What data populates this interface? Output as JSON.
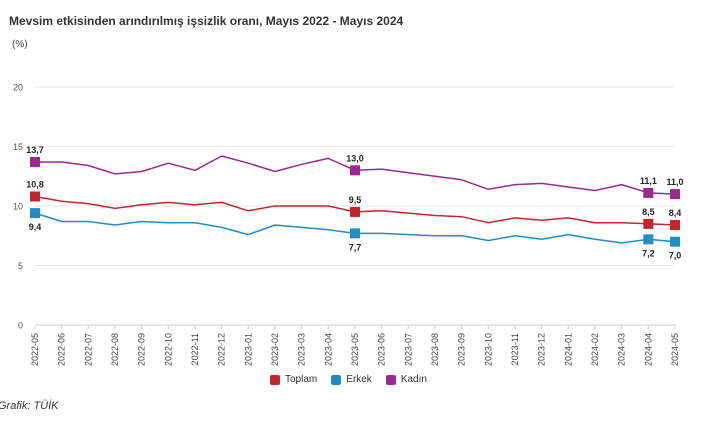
{
  "title": "Mevsim etkisinden arındırılmış işsizlik oranı, Mayıs 2022 - Mayıs 2024",
  "unit": "(%)",
  "source": "Grafik: TÜİK",
  "chart_data": {
    "type": "line",
    "title": "Mevsim etkisinden arındırılmış işsizlik oranı, Mayıs 2022 - Mayıs 2024",
    "ylabel": "(%)",
    "ylim": [
      0,
      20
    ],
    "yticks": [
      0,
      5,
      10,
      15,
      20
    ],
    "grid": "horizontal",
    "legend_position": "bottom-center",
    "categories": [
      "2022-05",
      "2022-06",
      "2022-07",
      "2022-08",
      "2022-09",
      "2022-10",
      "2022-11",
      "2022-12",
      "2023-01",
      "2023-02",
      "2023-03",
      "2023-04",
      "2023-05",
      "2023-06",
      "2023-07",
      "2023-08",
      "2023-09",
      "2023-10",
      "2023-11",
      "2023-12",
      "2024-01",
      "2024-02",
      "2024-03",
      "2024-04",
      "2024-05"
    ],
    "series": [
      {
        "name": "Toplam",
        "color": "#c0282d",
        "values": [
          10.8,
          10.4,
          10.2,
          9.8,
          10.1,
          10.3,
          10.1,
          10.3,
          9.6,
          10.0,
          10.0,
          10.0,
          9.5,
          9.6,
          9.4,
          9.2,
          9.1,
          8.6,
          9.0,
          8.8,
          9.0,
          8.6,
          8.6,
          8.5,
          8.4
        ],
        "labels": [
          {
            "index": 0,
            "text": "10,8",
            "pos": "above"
          },
          {
            "index": 12,
            "text": "9,5",
            "pos": "above"
          },
          {
            "index": 23,
            "text": "8,5",
            "pos": "above"
          },
          {
            "index": 24,
            "text": "8,4",
            "pos": "above"
          }
        ]
      },
      {
        "name": "Erkek",
        "color": "#1f8dc4",
        "values": [
          9.4,
          8.7,
          8.7,
          8.4,
          8.7,
          8.6,
          8.6,
          8.2,
          7.6,
          8.4,
          8.2,
          8.0,
          7.7,
          7.7,
          7.6,
          7.5,
          7.5,
          7.1,
          7.5,
          7.2,
          7.6,
          7.2,
          6.9,
          7.2,
          7.0
        ],
        "labels": [
          {
            "index": 0,
            "text": "9,4",
            "pos": "below"
          },
          {
            "index": 12,
            "text": "7,7",
            "pos": "below"
          },
          {
            "index": 23,
            "text": "7,2",
            "pos": "below"
          },
          {
            "index": 24,
            "text": "7,0",
            "pos": "below"
          }
        ]
      },
      {
        "name": "Kadın",
        "color": "#9b2a8c",
        "values": [
          13.7,
          13.7,
          13.4,
          12.7,
          12.9,
          13.6,
          13.0,
          14.2,
          13.6,
          12.9,
          13.5,
          14.0,
          13.0,
          13.1,
          12.8,
          12.5,
          12.2,
          11.4,
          11.8,
          11.9,
          11.6,
          11.3,
          11.8,
          11.1,
          11.0
        ],
        "labels": [
          {
            "index": 0,
            "text": "13,7",
            "pos": "above"
          },
          {
            "index": 12,
            "text": "13,0",
            "pos": "above"
          },
          {
            "index": 23,
            "text": "11,1",
            "pos": "above"
          },
          {
            "index": 24,
            "text": "11,0",
            "pos": "above"
          }
        ]
      }
    ]
  }
}
